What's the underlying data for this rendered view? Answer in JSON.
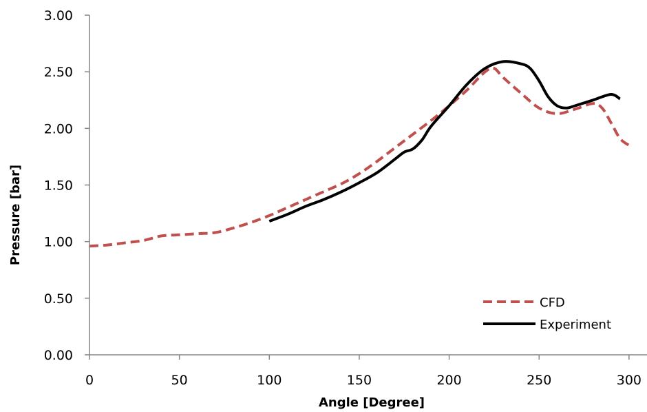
{
  "chart_data": {
    "type": "line",
    "xlabel": "Angle [Degree]",
    "ylabel": "Pressure [bar]",
    "xlim": [
      0,
      310
    ],
    "ylim": [
      0,
      3.0
    ],
    "x_ticks": [
      0,
      50,
      100,
      150,
      200,
      250,
      300
    ],
    "y_ticks": [
      0,
      0.5,
      1.0,
      1.5,
      2.0,
      2.5,
      3.0
    ],
    "x_tick_labels": [
      "0",
      "50",
      "100",
      "150",
      "200",
      "250",
      "300"
    ],
    "y_tick_labels": [
      "0.00",
      "0.50",
      "1.00",
      "1.50",
      "2.00",
      "2.50",
      "3.00"
    ],
    "grid": false,
    "legend_position": "bottom-right",
    "series": [
      {
        "name": "CFD",
        "color": "#c0504d",
        "style": "dashed",
        "x": [
          0,
          10,
          20,
          30,
          40,
          50,
          60,
          70,
          80,
          90,
          100,
          110,
          120,
          130,
          140,
          150,
          160,
          170,
          180,
          190,
          200,
          210,
          220,
          225,
          230,
          240,
          250,
          260,
          270,
          280,
          285,
          290,
          295,
          300
        ],
        "y": [
          0.96,
          0.97,
          0.99,
          1.01,
          1.05,
          1.06,
          1.07,
          1.08,
          1.12,
          1.17,
          1.23,
          1.3,
          1.37,
          1.44,
          1.51,
          1.6,
          1.71,
          1.83,
          1.95,
          2.07,
          2.2,
          2.34,
          2.5,
          2.53,
          2.45,
          2.31,
          2.18,
          2.13,
          2.17,
          2.22,
          2.18,
          2.05,
          1.91,
          1.85
        ]
      },
      {
        "name": "Experiment",
        "color": "#000000",
        "style": "solid",
        "x": [
          100,
          110,
          120,
          130,
          140,
          150,
          160,
          170,
          175,
          180,
          185,
          190,
          200,
          210,
          220,
          230,
          240,
          245,
          250,
          255,
          260,
          265,
          270,
          280,
          290,
          295
        ],
        "y": [
          1.18,
          1.24,
          1.31,
          1.37,
          1.44,
          1.52,
          1.61,
          1.73,
          1.79,
          1.82,
          1.9,
          2.02,
          2.2,
          2.39,
          2.53,
          2.59,
          2.57,
          2.53,
          2.42,
          2.28,
          2.2,
          2.18,
          2.2,
          2.25,
          2.3,
          2.26
        ]
      }
    ]
  }
}
